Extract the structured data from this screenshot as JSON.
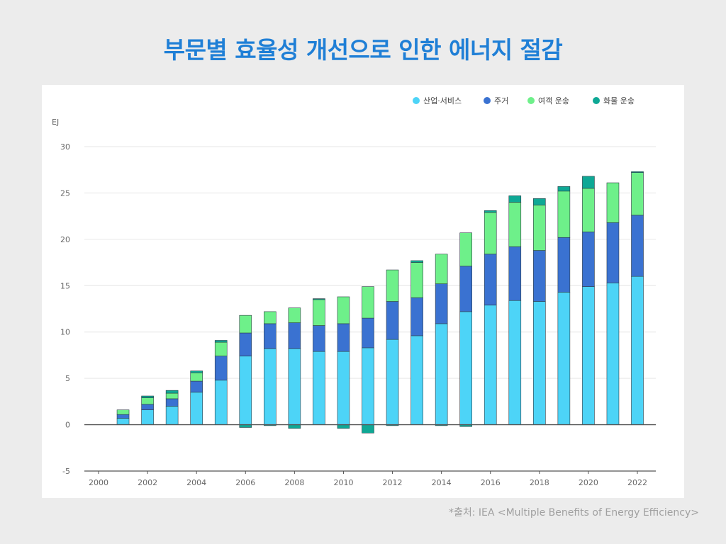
{
  "title": "부문별 효율성 개선으로 인한 에너지 절감",
  "source": "*출처: IEA <Multiple Benefits of Energy Efficiency>",
  "chart_data": {
    "type": "bar",
    "stacked": true,
    "ylabel": "EJ",
    "ylim": [
      -5,
      30
    ],
    "yticks": [
      -5,
      0,
      5,
      10,
      15,
      20,
      25,
      30
    ],
    "xticks": [
      "2000",
      "2002",
      "2004",
      "2006",
      "2008",
      "2010",
      "2012",
      "2014",
      "2016",
      "2018",
      "2020",
      "2022"
    ],
    "categories": [
      "2001",
      "2002",
      "2003",
      "2004",
      "2005",
      "2006",
      "2007",
      "2008",
      "2009",
      "2010",
      "2011",
      "2012",
      "2013",
      "2014",
      "2015",
      "2016",
      "2017",
      "2018",
      "2019",
      "2020",
      "2021",
      "2022"
    ],
    "grid": true,
    "legend_position": "top-right",
    "series": [
      {
        "name": "산업·서비스",
        "color": "#4dd4f7",
        "values": [
          0.7,
          1.6,
          2.0,
          3.5,
          4.8,
          7.4,
          8.2,
          8.2,
          7.9,
          7.9,
          8.3,
          9.2,
          9.6,
          10.9,
          12.2,
          12.9,
          13.4,
          13.3,
          14.3,
          14.9,
          15.3,
          16.0
        ]
      },
      {
        "name": "주거",
        "color": "#3a72d1",
        "values": [
          0.4,
          0.6,
          0.8,
          1.2,
          2.6,
          2.5,
          2.7,
          2.8,
          2.8,
          3.0,
          3.2,
          4.1,
          4.1,
          4.3,
          4.9,
          5.5,
          5.8,
          5.5,
          5.9,
          5.9,
          6.5,
          6.6
        ]
      },
      {
        "name": "여객 운송",
        "color": "#6ef08a",
        "values": [
          0.5,
          0.7,
          0.6,
          0.9,
          1.5,
          1.9,
          1.3,
          1.6,
          2.8,
          2.9,
          3.4,
          3.4,
          3.8,
          3.2,
          3.6,
          4.5,
          4.8,
          4.9,
          5.0,
          4.7,
          4.3,
          4.6
        ]
      },
      {
        "name": "화물 운송",
        "color": "#0ea895",
        "values": [
          0,
          0.2,
          0.3,
          0.2,
          0.2,
          -0.3,
          -0.1,
          -0.4,
          0.1,
          -0.4,
          -0.9,
          -0.1,
          0.2,
          -0.1,
          -0.2,
          0.2,
          0.7,
          0.7,
          0.5,
          1.3,
          0,
          0.1
        ]
      }
    ]
  }
}
